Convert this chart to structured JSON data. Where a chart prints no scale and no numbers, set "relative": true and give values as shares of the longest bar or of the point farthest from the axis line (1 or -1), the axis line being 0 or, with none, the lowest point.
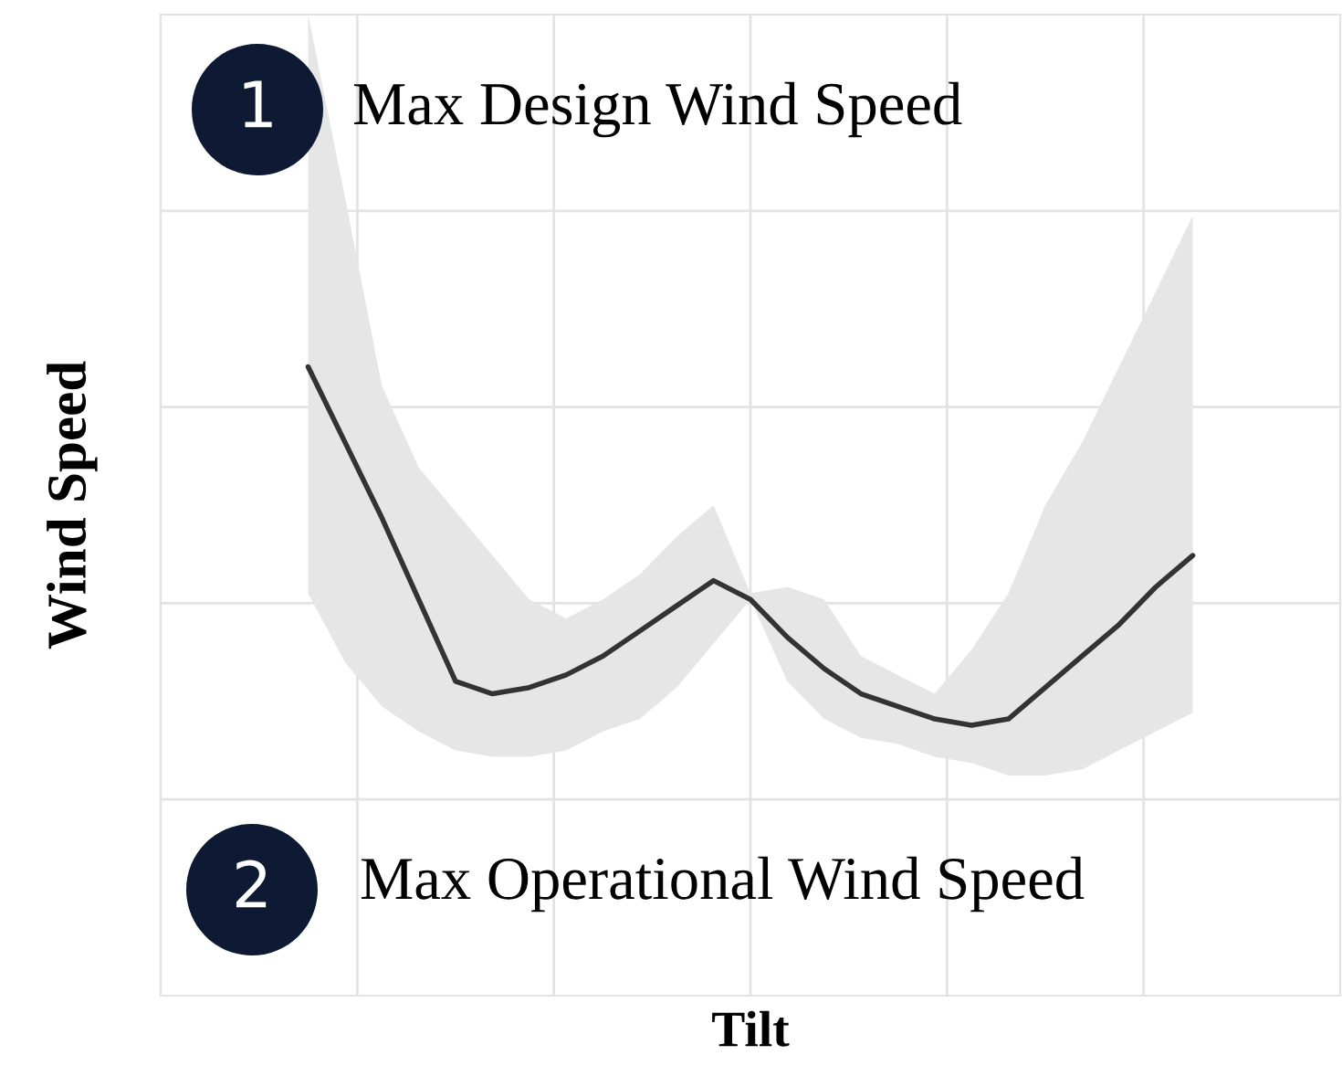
{
  "chart_data": {
    "type": "line",
    "relative": true,
    "xlabel": "Tilt",
    "ylabel": "Wind Speed",
    "grid": true,
    "categories": [
      null,
      null,
      null,
      null,
      null,
      null,
      null,
      null,
      null,
      null,
      null,
      null,
      null,
      null,
      null,
      null,
      null,
      null,
      null,
      null,
      null,
      null,
      null,
      null,
      null
    ],
    "series": [
      {
        "color": "#333333",
        "values": [
          1.0,
          0.88,
          0.76,
          0.63,
          0.5,
          0.48,
          0.49,
          0.51,
          0.54,
          0.58,
          0.62,
          0.66,
          0.63,
          0.57,
          0.52,
          0.48,
          0.46,
          0.44,
          0.43,
          0.44,
          0.49,
          0.54,
          0.59,
          0.65,
          0.7
        ],
        "upper": [
          1.56,
          1.27,
          0.97,
          0.84,
          0.77,
          0.7,
          0.63,
          0.6,
          0.63,
          0.67,
          0.73,
          0.78,
          0.64,
          0.65,
          0.63,
          0.54,
          0.51,
          0.48,
          0.55,
          0.64,
          0.78,
          0.88,
          1.0,
          1.12,
          1.24
        ],
        "lower": [
          0.64,
          0.53,
          0.46,
          0.42,
          0.39,
          0.38,
          0.38,
          0.39,
          0.42,
          0.44,
          0.49,
          0.56,
          0.63,
          0.5,
          0.44,
          0.41,
          0.4,
          0.38,
          0.37,
          0.35,
          0.35,
          0.36,
          0.39,
          0.42,
          0.45
        ]
      }
    ],
    "annotations": [
      "1",
      "Max Design Wind Speed",
      "2",
      "Max Operational Wind Speed"
    ]
  }
}
